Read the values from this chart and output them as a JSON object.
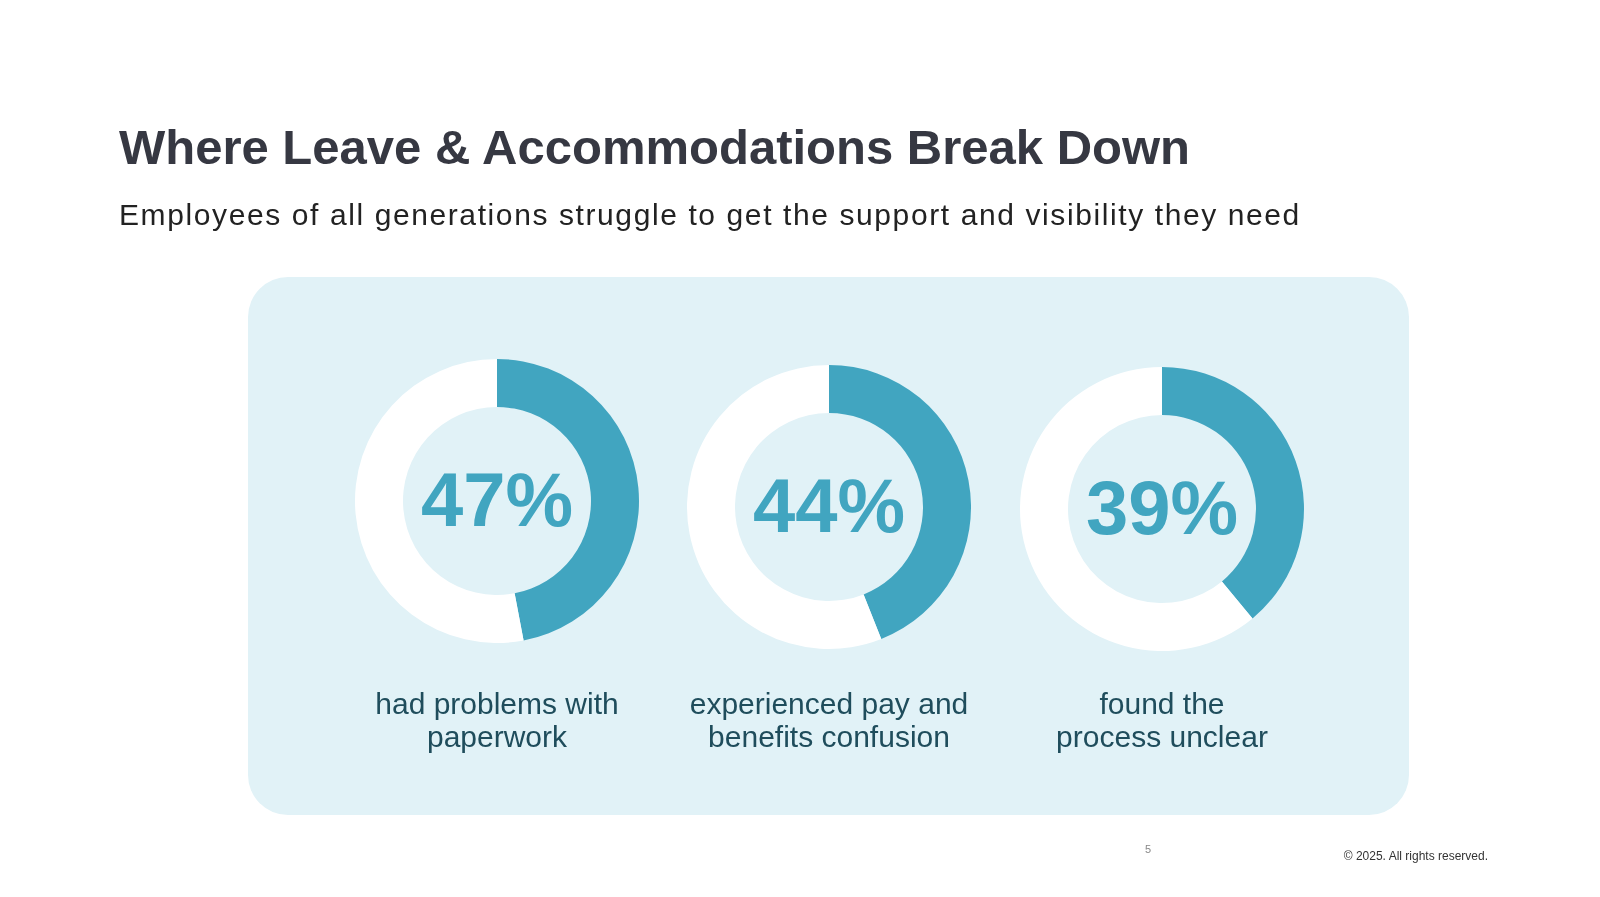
{
  "chart_data": [
    {
      "type": "donut",
      "title": "Where Leave & Accommodations Break Down",
      "subtitle": "Employees of all generations struggle to get the support and visibility they need",
      "xlabel": "had problems with paperwork",
      "categories": [
        null,
        null
      ],
      "values": [
        47,
        53
      ],
      "colors": [
        "#41a5c0",
        "#ffffff"
      ],
      "annotations": [
        "47%"
      ]
    },
    {
      "type": "donut",
      "xlabel": "experienced pay and benefits confusion",
      "categories": [
        null,
        null
      ],
      "values": [
        44,
        56
      ],
      "colors": [
        "#41a5c0",
        "#ffffff"
      ],
      "annotations": [
        "44%"
      ]
    },
    {
      "type": "donut",
      "xlabel": "found the process unclear",
      "categories": [
        null,
        null
      ],
      "values": [
        39,
        61
      ],
      "colors": [
        "#41a5c0",
        "#ffffff"
      ],
      "annotations": [
        "39%",
        "5",
        "© 2025. All rights reserved."
      ]
    }
  ]
}
